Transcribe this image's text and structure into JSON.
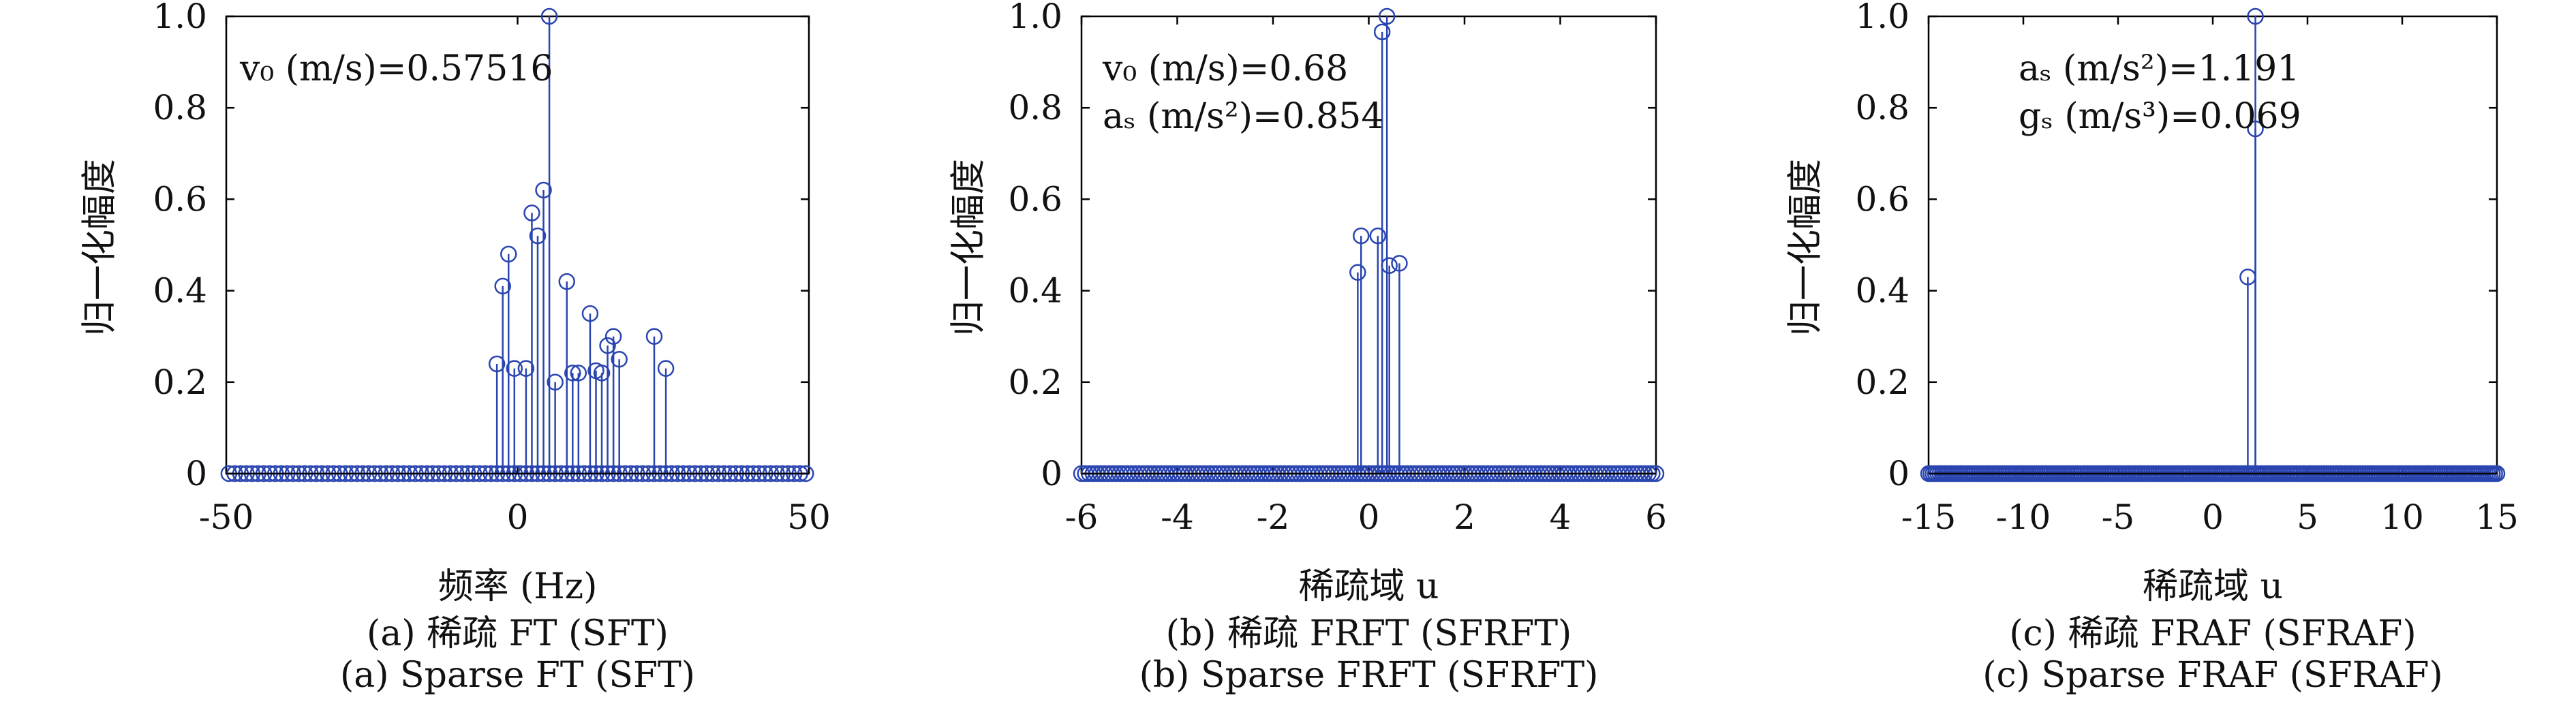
{
  "colors": {
    "stem": "#2a45b0",
    "axes": "#000000"
  },
  "chart_data": [
    {
      "type": "stem",
      "ylabel": "归一化幅度",
      "xlabel": "频率 (Hz)",
      "xlim": [
        -50,
        50
      ],
      "ylim": [
        0,
        1
      ],
      "xticks": [
        "-50",
        "0",
        "50"
      ],
      "xtick_values": [
        -50,
        0,
        50
      ],
      "yticks": [
        "0",
        "0.2",
        "0.4",
        "0.6",
        "0.8",
        "1.0"
      ],
      "ytick_values": [
        0,
        0.2,
        0.4,
        0.6,
        0.8,
        1.0
      ],
      "annotations": [
        "v₀ (m/s)=0.57516"
      ],
      "caption_cn": "(a) 稀疏 FT (SFT)",
      "caption_en": "(a) Sparse FT (SFT)",
      "zero_samples": {
        "from": -49.55,
        "to": 49.45,
        "step": 1
      },
      "stems": [
        [
          -3.55,
          0.24
        ],
        [
          -2.55,
          0.41
        ],
        [
          -1.55,
          0.48
        ],
        [
          -0.55,
          0.23
        ],
        [
          1.45,
          0.23
        ],
        [
          2.45,
          0.57
        ],
        [
          3.45,
          0.52
        ],
        [
          4.45,
          0.62
        ],
        [
          5.45,
          1.0
        ],
        [
          6.45,
          0.2
        ],
        [
          8.45,
          0.42
        ],
        [
          9.45,
          0.22
        ],
        [
          10.45,
          0.22
        ],
        [
          12.45,
          0.35
        ],
        [
          13.45,
          0.225
        ],
        [
          14.45,
          0.22
        ],
        [
          15.45,
          0.28
        ],
        [
          16.45,
          0.3
        ],
        [
          17.45,
          0.25
        ],
        [
          23.45,
          0.3
        ],
        [
          25.45,
          0.23
        ]
      ]
    },
    {
      "type": "stem",
      "ylabel": "归一化幅度",
      "xlabel": "稀疏域 u",
      "xlim": [
        -6,
        6
      ],
      "ylim": [
        0,
        1
      ],
      "xticks": [
        "-6",
        "-4",
        "-2",
        "0",
        "2",
        "4",
        "6"
      ],
      "xtick_values": [
        -6,
        -4,
        -2,
        0,
        2,
        4,
        6
      ],
      "yticks": [
        "0",
        "0.2",
        "0.4",
        "0.6",
        "0.8",
        "1.0"
      ],
      "ytick_values": [
        0,
        0.2,
        0.4,
        0.6,
        0.8,
        1.0
      ],
      "annotations": [
        "v₀ (m/s)=0.68",
        "aₛ (m/s²)=0.854"
      ],
      "caption_cn": "(b) 稀疏 FRFT (SFRFT)",
      "caption_en": "(b) Sparse FRFT (SFRFT)",
      "zero_samples": {
        "from": -6,
        "to": 6,
        "step": 0.08
      },
      "stems": [
        [
          -0.23,
          0.44
        ],
        [
          -0.16,
          0.52
        ],
        [
          0.19,
          0.52
        ],
        [
          0.28,
          0.966
        ],
        [
          0.38,
          1.0
        ],
        [
          0.43,
          0.455
        ],
        [
          0.64,
          0.46
        ]
      ]
    },
    {
      "type": "stem",
      "ylabel": "归一化幅度",
      "xlabel": "稀疏域 u",
      "xlim": [
        -15,
        15
      ],
      "ylim": [
        0,
        1
      ],
      "xticks": [
        "-15",
        "-10",
        "-5",
        "0",
        "5",
        "10",
        "15"
      ],
      "xtick_values": [
        -15,
        -10,
        -5,
        0,
        5,
        10,
        15
      ],
      "yticks": [
        "0",
        "0.2",
        "0.4",
        "0.6",
        "0.8",
        "1.0"
      ],
      "ytick_values": [
        0,
        0.2,
        0.4,
        0.6,
        0.8,
        1.0
      ],
      "annotations": [
        "aₛ (m/s²)=1.191",
        "gₛ (m/s³)=0.069"
      ],
      "caption_cn": "(c) 稀疏 FRAF (SFRAF)",
      "caption_en": "(c) Sparse FRAF (SFRAF)",
      "zero_samples": {
        "from": -15,
        "to": 15,
        "step": 0.12
      },
      "stems": [
        [
          1.85,
          0.43
        ],
        [
          2.25,
          1.0
        ],
        [
          2.25,
          0.754
        ]
      ]
    }
  ]
}
